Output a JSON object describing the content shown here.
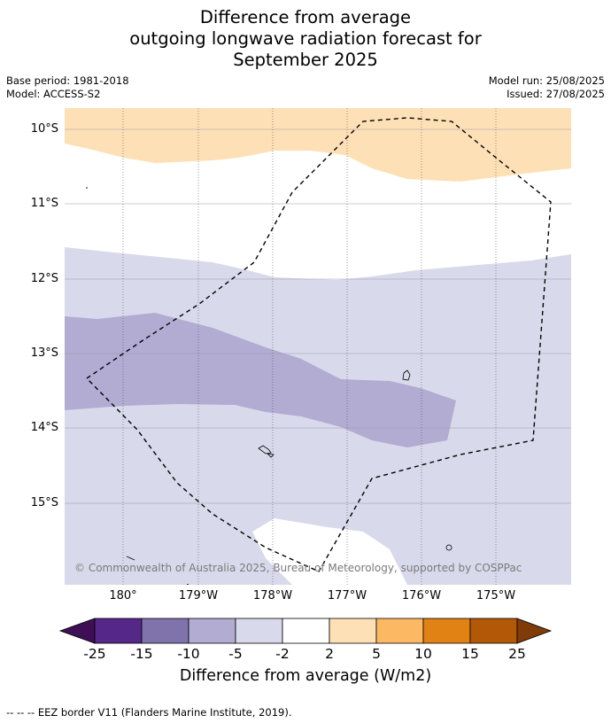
{
  "title_lines": [
    "Difference from average",
    "outgoing longwave radiation forecast for",
    "September 2025"
  ],
  "meta_left": [
    "Base period: 1981-2018",
    "Model: ACCESS-S2"
  ],
  "meta_right": [
    "Model run: 25/08/2025",
    "Issued: 27/08/2025"
  ],
  "map": {
    "lat_ticks": [
      "10°S",
      "11°S",
      "12°S",
      "13°S",
      "14°S",
      "15°S"
    ],
    "lon_ticks": [
      "180°",
      "179°W",
      "178°W",
      "177°W",
      "176°W",
      "175°W"
    ],
    "copyright": "© Commonwealth of Australia 2025, Bureau of Meteorology, supported by COSPPac",
    "colors": {
      "above_2_5": "#fee0b6",
      "neutral": "#ffffff",
      "below_5_2": "#d8daeb",
      "below_10_5": "#b2abd2"
    }
  },
  "colorbar": {
    "ticks": [
      "-25",
      "-15",
      "-10",
      "-5",
      "-2",
      "2",
      "5",
      "10",
      "15",
      "25"
    ],
    "colors": [
      "#3f0f56",
      "#542788",
      "#8073ac",
      "#b2abd2",
      "#d8daeb",
      "#ffffff",
      "#fee0b6",
      "#fdb863",
      "#e08214",
      "#b35806",
      "#7f3b08"
    ],
    "title": "Difference from average (W/m2)"
  },
  "footnote": "--  --  -- EEZ border V11 (Flanders Marine Institute, 2019)."
}
